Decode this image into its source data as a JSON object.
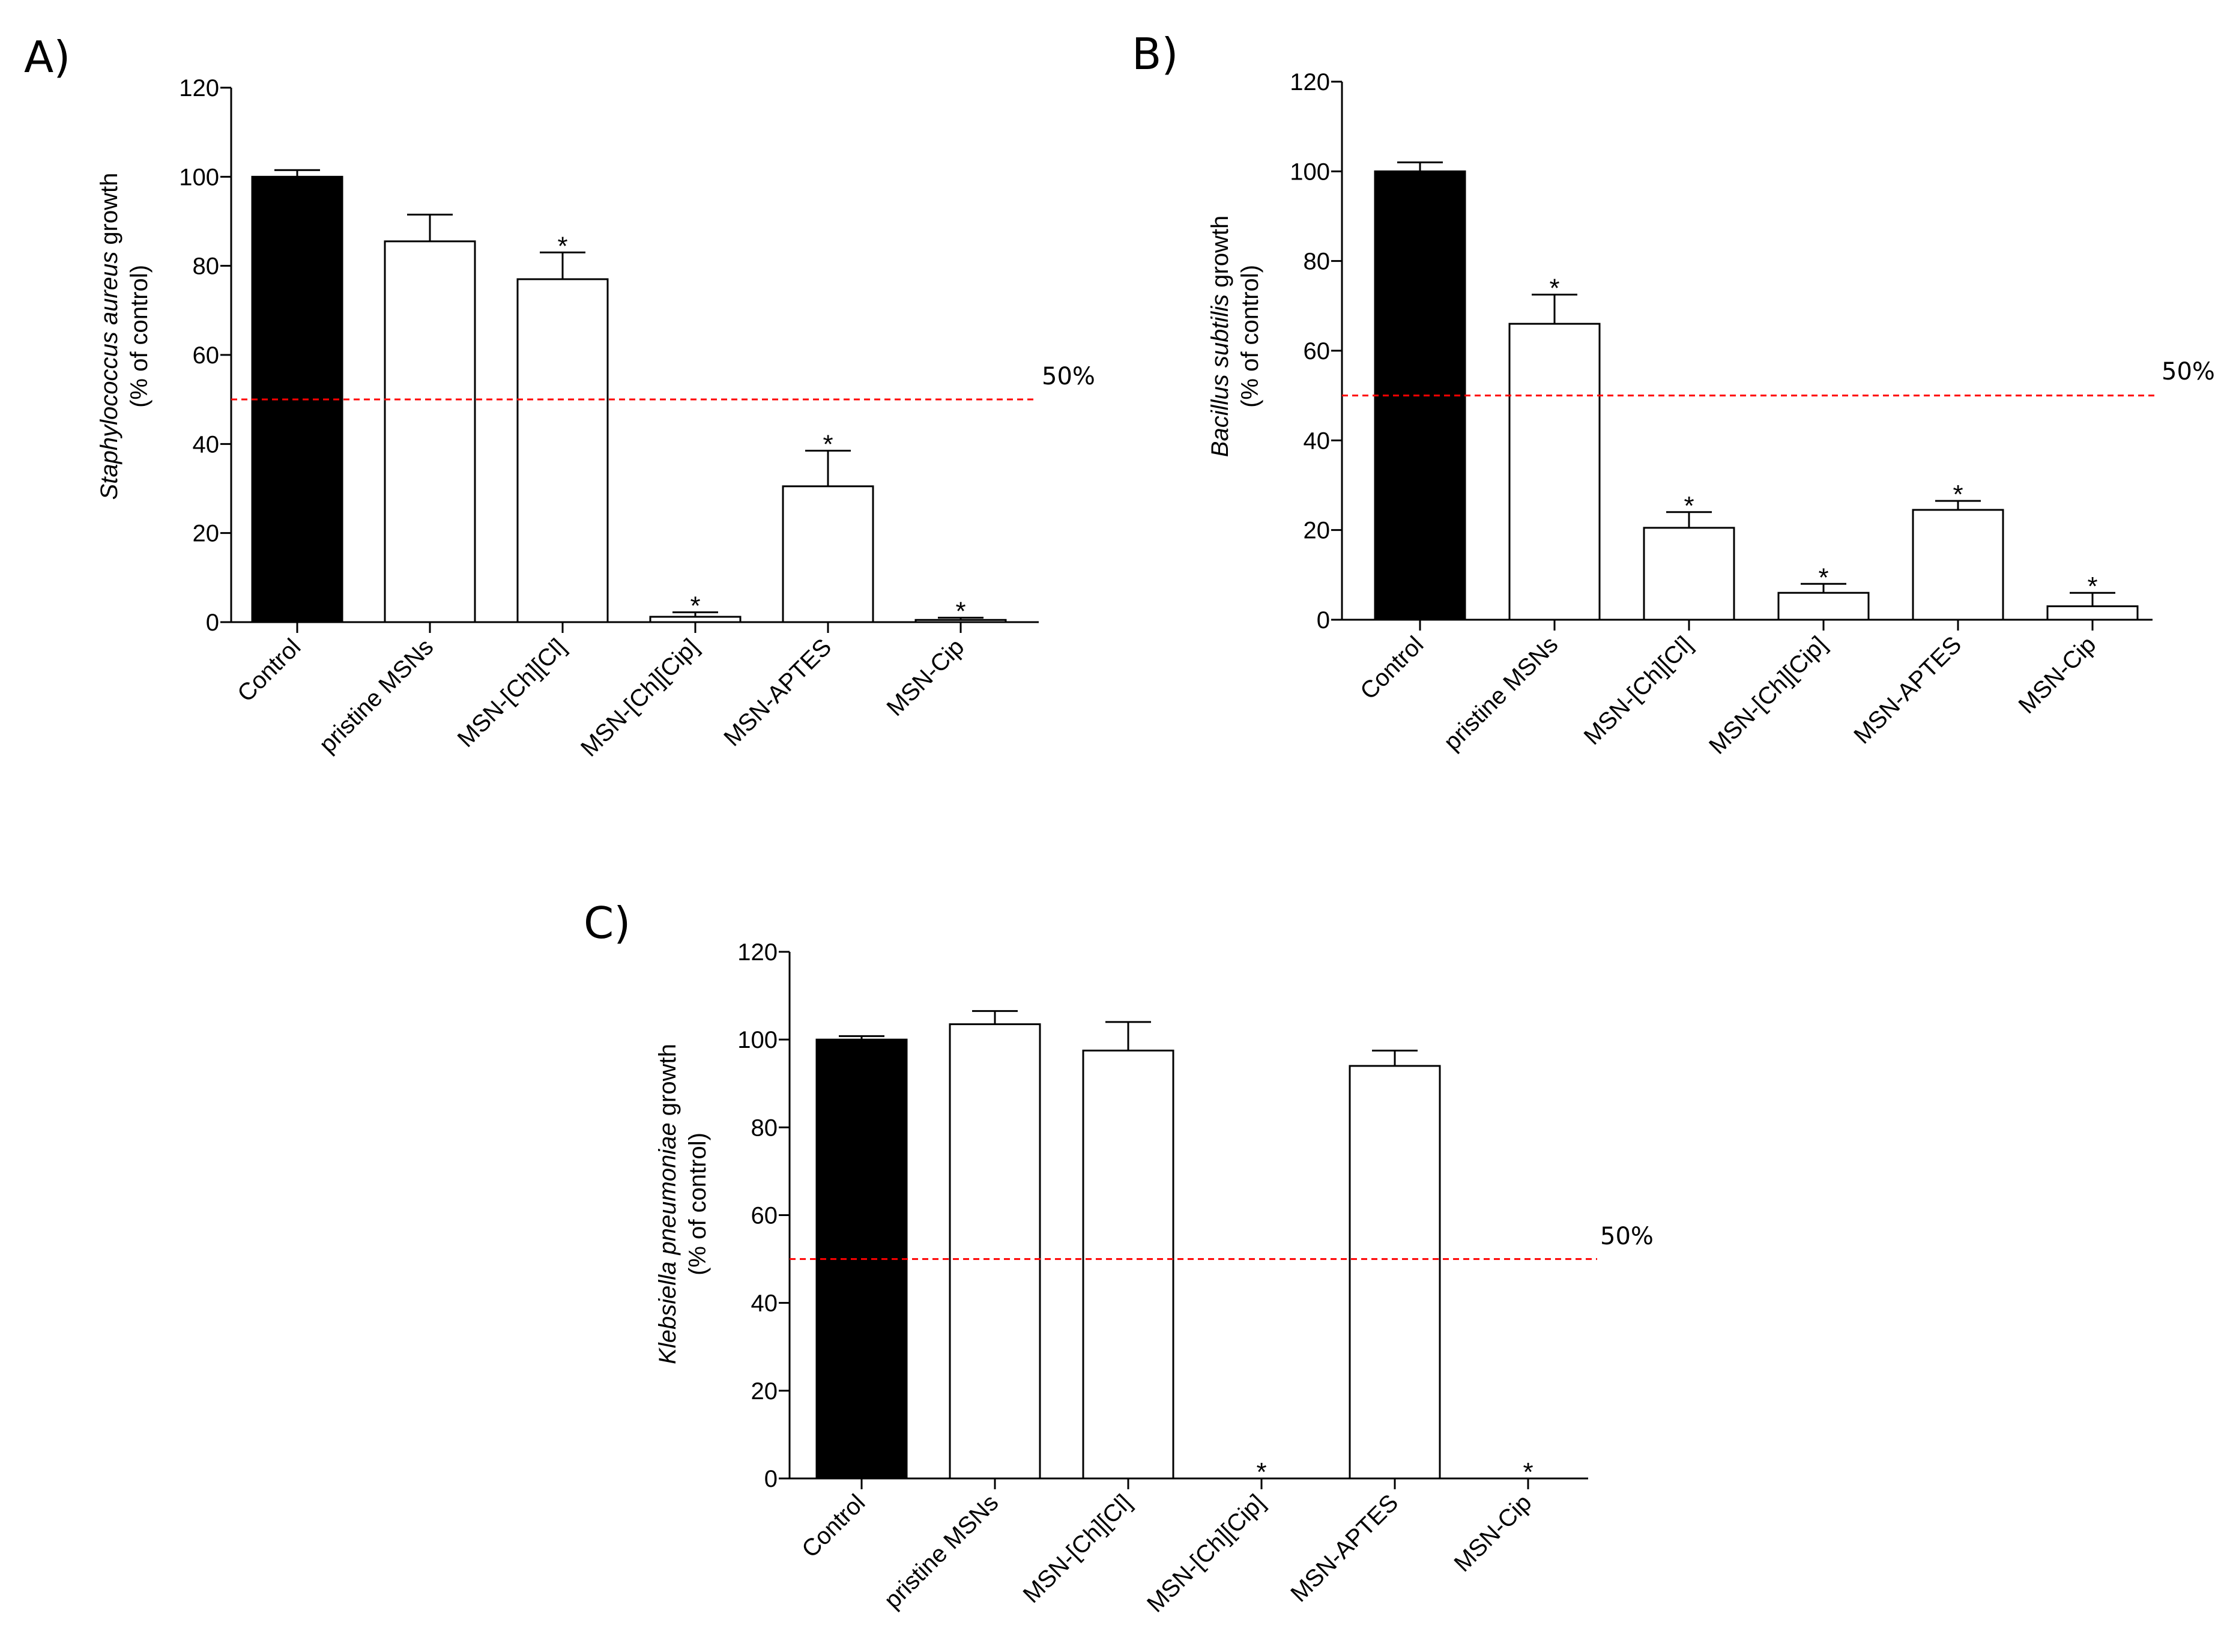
{
  "figure": {
    "reference_color": "#ff0000",
    "bar_colors": {
      "control": "#000000",
      "treatment": "#ffffff"
    }
  },
  "chart_data": [
    {
      "panel": "A)",
      "type": "bar",
      "categories": [
        "Control",
        "pristine MSNs",
        "MSN-[Ch][Cl]",
        "MSN-[Ch][Cip]",
        "MSN-APTES",
        "MSN-Cip"
      ],
      "values": [
        100,
        85.5,
        77,
        1.2,
        30.5,
        0.5
      ],
      "errors": [
        1.5,
        6,
        6,
        1,
        8,
        0.5
      ],
      "significant": [
        false,
        false,
        true,
        true,
        true,
        true
      ],
      "significance_marker": "*",
      "ylabel_italic": "Staphylococcus aureus",
      "ylabel_rest": " growth",
      "ylabel_line2": "(% of control)",
      "ylim": [
        0,
        120
      ],
      "yticks": [
        "0",
        "20",
        "40",
        "60",
        "80",
        "100",
        "120"
      ],
      "reference_line": {
        "value": 50,
        "label": "50%"
      }
    },
    {
      "panel": "B)",
      "type": "bar",
      "categories": [
        "Control",
        "pristine MSNs",
        "MSN-[Ch][Cl]",
        "MSN-[Ch][Cip]",
        "MSN-APTES",
        "MSN-Cip"
      ],
      "values": [
        100,
        66,
        20.5,
        6,
        24.5,
        3
      ],
      "errors": [
        2,
        6.5,
        3.5,
        2,
        2,
        3
      ],
      "significant": [
        false,
        true,
        true,
        true,
        true,
        true
      ],
      "significance_marker": "*",
      "ylabel_italic": "Bacillus subtilis",
      "ylabel_rest": " growth",
      "ylabel_line2": "(% of control)",
      "ylim": [
        0,
        120
      ],
      "yticks": [
        "0",
        "20",
        "40",
        "60",
        "80",
        "100",
        "120"
      ],
      "reference_line": {
        "value": 50,
        "label": "50%"
      }
    },
    {
      "panel": "C)",
      "type": "bar",
      "categories": [
        "Control",
        "pristine MSNs",
        "MSN-[Ch][Cl]",
        "MSN-[Ch][Cip]",
        "MSN-APTES",
        "MSN-Cip"
      ],
      "values": [
        100,
        103.5,
        97.5,
        0,
        94,
        0
      ],
      "errors": [
        0.8,
        3,
        6.5,
        0,
        3.5,
        0
      ],
      "significant": [
        false,
        false,
        false,
        true,
        false,
        true
      ],
      "significance_marker": "*",
      "ylabel_italic": "Klebsiella pneumoniae",
      "ylabel_rest": " growth",
      "ylabel_line2": "(% of control)",
      "ylim": [
        0,
        120
      ],
      "yticks": [
        "0",
        "20",
        "40",
        "60",
        "80",
        "100",
        "120"
      ],
      "reference_line": {
        "value": 50,
        "label": "50%"
      }
    }
  ]
}
